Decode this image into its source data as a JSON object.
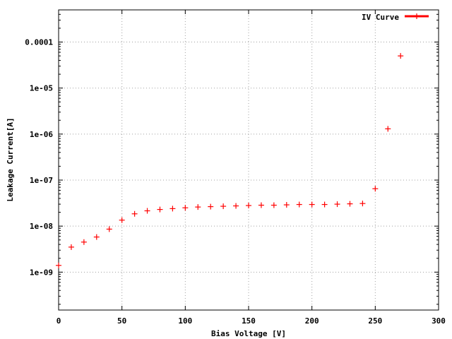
{
  "chart_data": {
    "type": "scatter",
    "xlabel": "Bias Voltage [V]",
    "ylabel": "Leakage Current[A]",
    "xlim": [
      0,
      300
    ],
    "ylim": [
      1.5e-10,
      0.0005
    ],
    "yscale": "log",
    "grid": true,
    "legend_position": "top-right",
    "x_ticks": [
      {
        "value": 0,
        "label": "0"
      },
      {
        "value": 50,
        "label": "50"
      },
      {
        "value": 100,
        "label": "100"
      },
      {
        "value": 150,
        "label": "150"
      },
      {
        "value": 200,
        "label": "200"
      },
      {
        "value": 250,
        "label": "250"
      },
      {
        "value": 300,
        "label": "300"
      }
    ],
    "y_ticks": [
      {
        "value": 1e-09,
        "label": "1e-09"
      },
      {
        "value": 1e-08,
        "label": "1e-08"
      },
      {
        "value": 1e-07,
        "label": "1e-07"
      },
      {
        "value": 1e-06,
        "label": "1e-06"
      },
      {
        "value": 1e-05,
        "label": "1e-05"
      },
      {
        "value": 0.0001,
        "label": "0.0001"
      }
    ],
    "series": [
      {
        "name": "IV Curve",
        "color": "#ff0000",
        "marker": "plus",
        "x": [
          0,
          10,
          20,
          30,
          40,
          50,
          60,
          70,
          80,
          90,
          100,
          110,
          120,
          130,
          140,
          150,
          160,
          170,
          180,
          190,
          200,
          210,
          220,
          230,
          240,
          250,
          260,
          270
        ],
        "y": [
          1.4e-09,
          3.5e-09,
          4.5e-09,
          5.8e-09,
          8.6e-09,
          1.35e-08,
          1.85e-08,
          2.15e-08,
          2.3e-08,
          2.4e-08,
          2.5e-08,
          2.6e-08,
          2.65e-08,
          2.7e-08,
          2.75e-08,
          2.8e-08,
          2.85e-08,
          2.85e-08,
          2.9e-08,
          2.95e-08,
          2.95e-08,
          2.95e-08,
          3e-08,
          3.05e-08,
          3.1e-08,
          6.5e-08,
          1.3e-06,
          5e-05
        ]
      }
    ]
  }
}
